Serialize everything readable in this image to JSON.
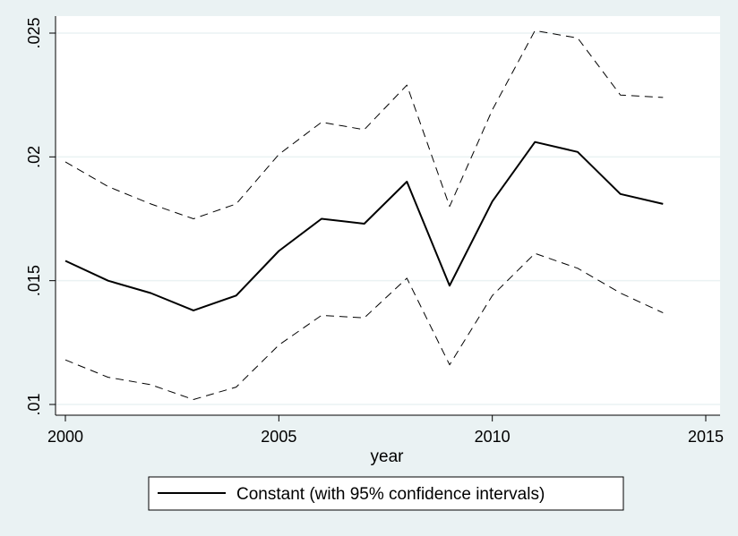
{
  "chart_data": {
    "type": "line",
    "title": "",
    "xlabel": "year",
    "ylabel": "",
    "x": [
      2000,
      2001,
      2002,
      2003,
      2004,
      2005,
      2006,
      2007,
      2008,
      2009,
      2010,
      2011,
      2012,
      2013,
      2014
    ],
    "series": [
      {
        "name": "Constant (with 95% confidence intervals)",
        "style": "solid",
        "color": "#000000",
        "values": [
          0.0158,
          0.015,
          0.0145,
          0.0138,
          0.0144,
          0.0162,
          0.0175,
          0.0173,
          0.019,
          0.0148,
          0.0182,
          0.0206,
          0.0202,
          0.0185,
          0.0181
        ]
      },
      {
        "name": "",
        "role": "upper-ci",
        "style": "dashed",
        "color": "#000000",
        "values": [
          0.0198,
          0.0188,
          0.0181,
          0.0175,
          0.0181,
          0.0201,
          0.0214,
          0.0211,
          0.0229,
          0.018,
          0.0219,
          0.0251,
          0.0248,
          0.0225,
          0.0224
        ]
      },
      {
        "name": "",
        "role": "lower-ci",
        "style": "dashed",
        "color": "#000000",
        "values": [
          0.0118,
          0.0111,
          0.0108,
          0.0102,
          0.0107,
          0.0124,
          0.0136,
          0.0135,
          0.0151,
          0.0116,
          0.0144,
          0.0161,
          0.0155,
          0.0145,
          0.0137
        ]
      }
    ],
    "xlim": [
      2000,
      2015
    ],
    "ylim": [
      0.01,
      0.025
    ],
    "xticks": [
      {
        "value": 2000,
        "label": "2000"
      },
      {
        "value": 2005,
        "label": "2005"
      },
      {
        "value": 2010,
        "label": "2010"
      },
      {
        "value": 2015,
        "label": "2015"
      }
    ],
    "yticks": [
      {
        "value": 0.01,
        "label": ".01"
      },
      {
        "value": 0.015,
        "label": ".015"
      },
      {
        "value": 0.02,
        "label": ".02"
      },
      {
        "value": 0.025,
        "label": ".025"
      }
    ],
    "grid": "horizontal",
    "legend": {
      "position": "bottom-center",
      "entries": [
        "Constant (with 95% confidence intervals)"
      ]
    },
    "colors": {
      "background": "#eaf2f3",
      "plot_area": "#ffffff",
      "grid": "#eaf2f3",
      "line": "#000000"
    }
  }
}
